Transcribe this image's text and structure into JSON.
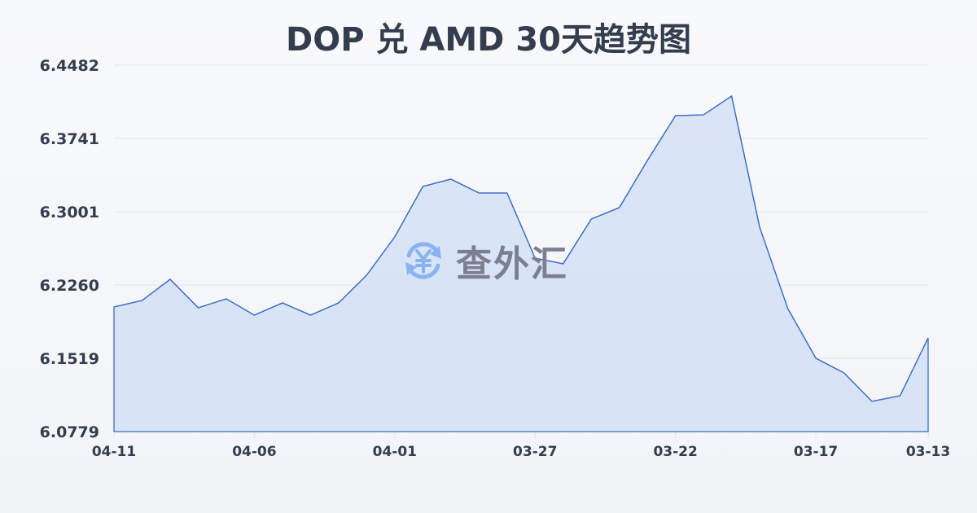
{
  "title": "DOP 兑 AMD 30天趋势图",
  "watermark": {
    "text": "查外汇",
    "icon": "yuan-exchange-icon"
  },
  "colors": {
    "line": "#3a6cc8",
    "fill": "#d6e1f5",
    "grid": "#e1e4ea",
    "text": "#333d4d",
    "watermark_icon": "#8ab4f0",
    "watermark_text": "#7a8090"
  },
  "chart_data": {
    "type": "area",
    "title": "DOP 兑 AMD 30天趋势图",
    "xlabel": "",
    "ylabel": "",
    "ylim": [
      6.0779,
      6.4482
    ],
    "yticks": [
      "6.4482",
      "6.3741",
      "6.3001",
      "6.2260",
      "6.1519",
      "6.0779"
    ],
    "xticks": [
      "04-11",
      "04-06",
      "04-01",
      "03-27",
      "03-22",
      "03-17",
      "03-13"
    ],
    "grid": true,
    "legend": "none",
    "x": [
      "04-11",
      "04-10",
      "04-09",
      "04-08",
      "04-07",
      "04-06",
      "04-05",
      "04-04",
      "04-03",
      "04-02",
      "04-01",
      "03-31",
      "03-30",
      "03-29",
      "03-28",
      "03-27",
      "03-26",
      "03-25",
      "03-24",
      "03-23",
      "03-22",
      "03-21",
      "03-20",
      "03-19",
      "03-18",
      "03-17",
      "03-16",
      "03-15",
      "03-14",
      "03-13"
    ],
    "series": [
      {
        "name": "DOP/AMD",
        "values": [
          6.2038,
          6.2104,
          6.2318,
          6.203,
          6.212,
          6.1956,
          6.2079,
          6.1956,
          6.2079,
          6.2359,
          6.2746,
          6.3256,
          6.333,
          6.319,
          6.319,
          6.2532,
          6.2474,
          6.2927,
          6.3042,
          6.3519,
          6.3972,
          6.398,
          6.4169,
          6.2844,
          6.2022,
          6.152,
          6.1372,
          6.1084,
          6.1141,
          6.1725
        ]
      }
    ]
  }
}
